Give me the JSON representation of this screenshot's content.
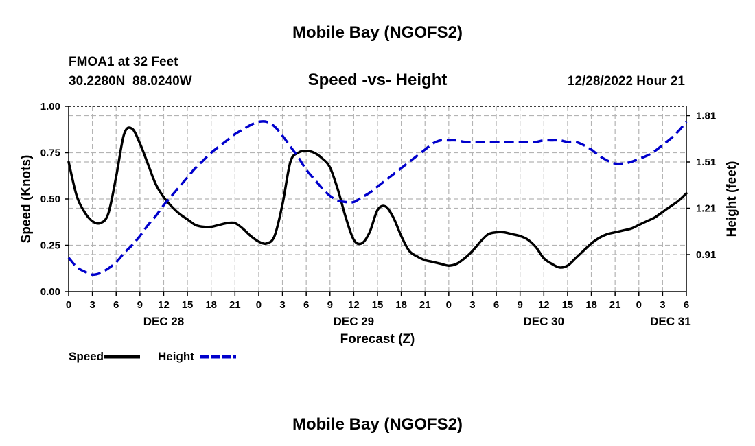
{
  "header": {
    "title": "Mobile Bay (NGOFS2)",
    "station": "FMOA1 at 32 Feet",
    "coords": "30.2280N  88.0240W",
    "subtitle": "Speed -vs- Height",
    "timestamp": "12/28/2022 Hour 21"
  },
  "footer": {
    "title": "Mobile Bay (NGOFS2)"
  },
  "chart_data": {
    "type": "line",
    "title": "Speed -vs- Height",
    "xlabel": "Forecast (Z)",
    "ylabel": "Speed (Knots)",
    "y2label": "Height (feet)",
    "x_unit": "hours from DEC 28 00Z",
    "xlim": [
      0,
      78
    ],
    "ylim": [
      0,
      1.0
    ],
    "y2lim": [
      0.67,
      1.87
    ],
    "grid": true,
    "x_ticks": [
      0,
      3,
      6,
      9,
      12,
      15,
      18,
      21,
      24,
      27,
      30,
      33,
      36,
      39,
      42,
      45,
      48,
      51,
      54,
      57,
      60,
      63,
      66,
      69,
      72,
      75,
      78
    ],
    "x_tick_labels": [
      "0",
      "3",
      "6",
      "9",
      "12",
      "15",
      "18",
      "21",
      "0",
      "3",
      "6",
      "9",
      "12",
      "15",
      "18",
      "21",
      "0",
      "3",
      "6",
      "9",
      "12",
      "15",
      "18",
      "21",
      "0",
      "3",
      "6"
    ],
    "date_labels": [
      {
        "x": 12,
        "label": "DEC 28"
      },
      {
        "x": 36,
        "label": "DEC 29"
      },
      {
        "x": 60,
        "label": "DEC 30"
      },
      {
        "x": 76,
        "label": "DEC 31"
      }
    ],
    "y_ticks": [
      0,
      0.25,
      0.5,
      0.75,
      1.0
    ],
    "y_tick_labels": [
      "0.00",
      "0.25",
      "0.50",
      "0.75",
      "1.00"
    ],
    "y2_ticks": [
      0.91,
      1.21,
      1.51,
      1.81
    ],
    "y2_tick_labels": [
      "0.91",
      "1.21",
      "1.51",
      "1.81"
    ],
    "series": [
      {
        "name": "Speed",
        "color": "#000000",
        "dash": false,
        "axis": "left",
        "x": [
          0,
          1,
          2,
          3,
          4,
          5,
          6,
          7,
          8,
          9,
          10,
          11,
          12,
          13,
          14,
          15,
          16,
          17,
          18,
          19,
          20,
          21,
          22,
          23,
          24,
          25,
          26,
          27,
          28,
          29,
          30,
          31,
          32,
          33,
          34,
          35,
          36,
          37,
          38,
          39,
          40,
          41,
          42,
          43,
          44,
          45,
          46,
          47,
          48,
          49,
          50,
          51,
          52,
          53,
          54,
          55,
          56,
          57,
          58,
          59,
          60,
          61,
          62,
          63,
          64,
          65,
          66,
          67,
          68,
          69,
          70,
          71,
          72,
          73,
          74,
          75,
          76,
          77,
          78
        ],
        "values": [
          0.7,
          0.52,
          0.43,
          0.38,
          0.37,
          0.42,
          0.62,
          0.85,
          0.88,
          0.8,
          0.69,
          0.58,
          0.51,
          0.46,
          0.42,
          0.39,
          0.36,
          0.35,
          0.35,
          0.36,
          0.37,
          0.37,
          0.34,
          0.3,
          0.27,
          0.26,
          0.3,
          0.47,
          0.7,
          0.75,
          0.76,
          0.75,
          0.72,
          0.67,
          0.55,
          0.4,
          0.28,
          0.26,
          0.32,
          0.44,
          0.46,
          0.4,
          0.3,
          0.22,
          0.19,
          0.17,
          0.16,
          0.15,
          0.14,
          0.15,
          0.18,
          0.22,
          0.27,
          0.31,
          0.32,
          0.32,
          0.31,
          0.3,
          0.28,
          0.24,
          0.18,
          0.15,
          0.13,
          0.14,
          0.18,
          0.22,
          0.26,
          0.29,
          0.31,
          0.32,
          0.33,
          0.34,
          0.36,
          0.38,
          0.4,
          0.43,
          0.46,
          0.49,
          0.53
        ]
      },
      {
        "name": "Height",
        "color": "#0000cc",
        "dash": true,
        "axis": "right",
        "x": [
          0,
          1,
          2,
          3,
          4,
          5,
          6,
          7,
          8,
          9,
          10,
          11,
          12,
          13,
          14,
          15,
          16,
          17,
          18,
          19,
          20,
          21,
          22,
          23,
          24,
          25,
          26,
          27,
          28,
          29,
          30,
          31,
          32,
          33,
          34,
          35,
          36,
          37,
          38,
          39,
          40,
          41,
          42,
          43,
          44,
          45,
          46,
          47,
          48,
          49,
          50,
          51,
          52,
          53,
          54,
          55,
          56,
          57,
          58,
          59,
          60,
          61,
          62,
          63,
          64,
          65,
          66,
          67,
          68,
          69,
          70,
          71,
          72,
          73,
          74,
          75,
          76,
          77,
          78
        ],
        "values": [
          0.89,
          0.83,
          0.8,
          0.78,
          0.79,
          0.82,
          0.86,
          0.92,
          0.97,
          1.03,
          1.1,
          1.16,
          1.23,
          1.29,
          1.35,
          1.41,
          1.47,
          1.52,
          1.57,
          1.61,
          1.65,
          1.69,
          1.72,
          1.75,
          1.77,
          1.77,
          1.74,
          1.68,
          1.61,
          1.54,
          1.46,
          1.4,
          1.34,
          1.29,
          1.26,
          1.25,
          1.25,
          1.28,
          1.31,
          1.35,
          1.39,
          1.43,
          1.47,
          1.51,
          1.55,
          1.59,
          1.63,
          1.65,
          1.65,
          1.65,
          1.64,
          1.64,
          1.64,
          1.64,
          1.64,
          1.64,
          1.64,
          1.64,
          1.64,
          1.64,
          1.65,
          1.65,
          1.65,
          1.64,
          1.64,
          1.62,
          1.59,
          1.55,
          1.52,
          1.5,
          1.5,
          1.51,
          1.53,
          1.55,
          1.58,
          1.62,
          1.66,
          1.71,
          1.77
        ]
      }
    ],
    "legend": [
      {
        "label": "Speed",
        "color": "#000000",
        "dash": false
      },
      {
        "label": "Height",
        "color": "#0000cc",
        "dash": true
      }
    ]
  }
}
